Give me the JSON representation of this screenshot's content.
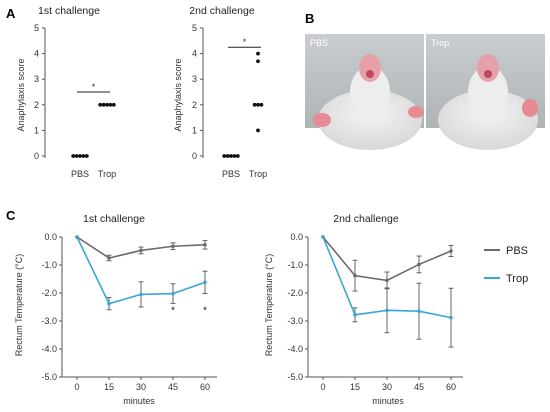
{
  "panel_labels": {
    "a": "A",
    "b": "B",
    "c": "C"
  },
  "panel_b": {
    "photo_labels": [
      "PBS",
      "Trop"
    ]
  },
  "chart_data": [
    {
      "type": "scatter",
      "title": "1st challenge",
      "ylabel": "Anaphylaxis score",
      "categories": [
        "PBS",
        "Trop"
      ],
      "ylim": [
        0,
        5
      ],
      "yticks": [
        "0",
        "1",
        "2",
        "3",
        "4",
        "5"
      ],
      "series": [
        {
          "category": "PBS",
          "values": [
            0,
            0,
            0,
            0,
            0
          ]
        },
        {
          "category": "Trop",
          "values": [
            2,
            2,
            2,
            2,
            2
          ]
        }
      ],
      "bars": [
        2.5
      ],
      "significance": "*"
    },
    {
      "type": "scatter",
      "title": "2nd challenge",
      "ylabel": "Anaphylaxis score",
      "categories": [
        "PBS",
        "Trop"
      ],
      "ylim": [
        0,
        5
      ],
      "yticks": [
        "0",
        "1",
        "2",
        "3",
        "4",
        "5"
      ],
      "series": [
        {
          "category": "PBS",
          "values": [
            0,
            0,
            0,
            0,
            0
          ]
        },
        {
          "category": "Trop",
          "values": [
            4,
            3.7,
            2,
            2,
            2,
            1
          ]
        }
      ],
      "bars": [
        4.25
      ],
      "significance": "*"
    },
    {
      "type": "line",
      "title": "1st challenge",
      "xlabel": "minutes",
      "ylabel": "Rectum Temperature (°C)",
      "x": [
        0,
        15,
        30,
        45,
        60
      ],
      "xticks": [
        "0",
        "15",
        "30",
        "45",
        "60"
      ],
      "ylim": [
        -5.0,
        0.0
      ],
      "yticks": [
        "0.0",
        "-1.0",
        "-2.0",
        "-3.0",
        "-4.0",
        "-5.0"
      ],
      "series": [
        {
          "name": "PBS",
          "color": "#6b6b6b",
          "values": [
            0,
            -0.75,
            -0.48,
            -0.33,
            -0.28
          ],
          "err": [
            0,
            0.1,
            0.12,
            0.12,
            0.15
          ]
        },
        {
          "name": "Trop",
          "color": "#3aa6d6",
          "values": [
            0,
            -2.38,
            -2.05,
            -2.02,
            -1.62
          ],
          "err": [
            0,
            0.22,
            0.45,
            0.35,
            0.4
          ]
        }
      ],
      "significance": [
        {
          "x": 45,
          "y": -2.55,
          "label": "*"
        },
        {
          "x": 60,
          "y": -2.55,
          "label": "*"
        }
      ]
    },
    {
      "type": "line",
      "title": "2nd challenge",
      "xlabel": "minutes",
      "ylabel": "Rectum Temperature (°C)",
      "x": [
        0,
        15,
        30,
        45,
        60
      ],
      "xticks": [
        "0",
        "15",
        "30",
        "45",
        "60"
      ],
      "ylim": [
        -5.0,
        0.0
      ],
      "yticks": [
        "0.0",
        "-1.0",
        "-2.0",
        "-3.0",
        "-4.0",
        "-5.0"
      ],
      "series": [
        {
          "name": "PBS",
          "color": "#6b6b6b",
          "values": [
            0,
            -1.38,
            -1.55,
            -0.98,
            -0.5
          ],
          "err": [
            0,
            0.55,
            0.3,
            0.3,
            0.2
          ]
        },
        {
          "name": "Trop",
          "color": "#3aa6d6",
          "values": [
            0,
            -2.78,
            -2.62,
            -2.65,
            -2.88
          ],
          "err": [
            0,
            0.25,
            0.8,
            1.0,
            1.05
          ]
        }
      ]
    }
  ],
  "legend": {
    "items": [
      {
        "name": "PBS",
        "color": "#6b6b6b"
      },
      {
        "name": "Trop",
        "color": "#3aa6d6"
      }
    ]
  }
}
